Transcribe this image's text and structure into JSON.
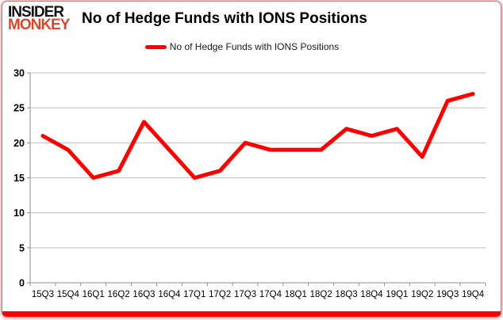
{
  "logo": {
    "line1": "INSIDER",
    "line2": "MONKEY"
  },
  "header": {
    "title": "No of Hedge Funds with IONS Positions"
  },
  "legend": {
    "label": "No of Hedge Funds with IONS Positions"
  },
  "colors": {
    "series": "#fe0000",
    "logo_text": "#111111",
    "logo_accent": "#d6492f",
    "grid": "#bdbdbd",
    "axis": "#8f8f8f",
    "tick_text": "#000000",
    "bottom_bar": "#fd0202"
  },
  "chart_data": {
    "type": "line",
    "title": "No of Hedge Funds with IONS Positions",
    "categories": [
      "15Q3",
      "15Q4",
      "16Q1",
      "16Q2",
      "16Q3",
      "16Q4",
      "17Q1",
      "17Q2",
      "17Q3",
      "17Q4",
      "18Q1",
      "18Q2",
      "18Q3",
      "18Q4",
      "19Q1",
      "19Q2",
      "19Q3",
      "19Q4"
    ],
    "series": [
      {
        "name": "No of Hedge Funds with IONS Positions",
        "values": [
          21,
          19,
          15,
          16,
          23,
          19,
          15,
          16,
          20,
          19,
          19,
          19,
          22,
          21,
          22,
          18,
          26,
          27
        ]
      }
    ],
    "xlabel": "",
    "ylabel": "",
    "ylim": [
      0,
      30
    ],
    "ytick_step": 5,
    "grid": "horizontal",
    "legend_position": "top"
  }
}
